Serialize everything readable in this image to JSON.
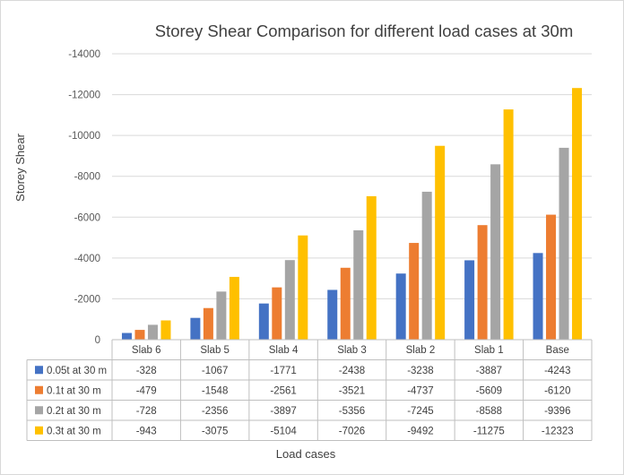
{
  "chart_data": {
    "type": "bar",
    "title": "Storey Shear Comparison for different load cases at 30m",
    "xlabel": "Load cases",
    "ylabel": "Storey Shear",
    "ylim": [
      0,
      -14000
    ],
    "yticks": [
      0,
      -2000,
      -4000,
      -6000,
      -8000,
      -10000,
      -12000,
      -14000
    ],
    "ytick_labels": [
      "0",
      "-2000",
      "-4000",
      "-6000",
      "-8000",
      "-10000",
      "-12000",
      "-14000"
    ],
    "categories": [
      "Slab 6",
      "Slab 5",
      "Slab 4",
      "Slab 3",
      "Slab 2",
      "Slab 1",
      "Base"
    ],
    "grid": true,
    "legend": "data-table",
    "series": [
      {
        "name": "0.05t at 30 m",
        "color": "#4472C4",
        "values": [
          -328,
          -1067,
          -1771,
          -2438,
          -3238,
          -3887,
          -4243
        ]
      },
      {
        "name": "0.1t at 30 m",
        "color": "#ED7D31",
        "values": [
          -479,
          -1548,
          -2561,
          -3521,
          -4737,
          -5609,
          -6120
        ]
      },
      {
        "name": "0.2t at 30 m",
        "color": "#A5A5A5",
        "values": [
          -728,
          -2356,
          -3897,
          -5356,
          -7245,
          -8588,
          -9396
        ]
      },
      {
        "name": "0.3t at 30 m",
        "color": "#FFC000",
        "values": [
          -943,
          -3075,
          -5104,
          -7026,
          -9492,
          -11275,
          -12323
        ]
      }
    ]
  }
}
